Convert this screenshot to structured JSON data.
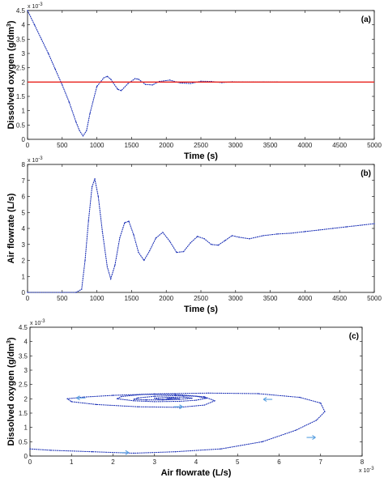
{
  "chart_data": [
    {
      "type": "line",
      "panel_label": "(a)",
      "xlabel": "Time (s)",
      "ylabel": "Dissolved oxygen (g/dm",
      "ylabel_sup": "3",
      "ylabel_close": ")",
      "y_multiplier": "x 10",
      "y_multiplier_exp": "-3",
      "xlim": [
        0,
        5000
      ],
      "ylim": [
        0,
        4.5
      ],
      "xticks": [
        0,
        500,
        1000,
        1500,
        2000,
        2500,
        3000,
        3500,
        4000,
        4500,
        5000
      ],
      "yticks": [
        0,
        0.5,
        1,
        1.5,
        2,
        2.5,
        3,
        3.5,
        4,
        4.5
      ],
      "grid": false,
      "colors": {
        "measured": "#1a2fb5",
        "setpoint": "#e8221c"
      },
      "series": [
        {
          "style": "dotted",
          "x": [
            0,
            100,
            200,
            300,
            400,
            500,
            600,
            700,
            750,
            800,
            850,
            900,
            1000,
            1100,
            1150,
            1200,
            1300,
            1350,
            1450,
            1550,
            1600,
            1700,
            1800,
            1900,
            2050,
            2200,
            2350,
            2500,
            2650,
            2800,
            2950,
            3100,
            3250,
            3400,
            3600
          ],
          "y": [
            4.5,
            4.0,
            3.5,
            3.0,
            2.45,
            1.9,
            1.3,
            0.6,
            0.3,
            0.12,
            0.3,
            0.9,
            1.85,
            2.15,
            2.2,
            2.1,
            1.75,
            1.7,
            1.95,
            2.12,
            2.1,
            1.92,
            1.9,
            2.02,
            2.07,
            1.97,
            1.95,
            2.03,
            2.02,
            1.98,
            2.01,
            2.0,
            2.0,
            2.0,
            2.0
          ]
        },
        {
          "style": "solid",
          "x": [
            0,
            5000
          ],
          "y": [
            2.0,
            2.0
          ]
        }
      ]
    },
    {
      "type": "line",
      "panel_label": "(b)",
      "xlabel": "Time (s)",
      "ylabel": "Air flowrate (L/s)",
      "y_multiplier": "x 10",
      "y_multiplier_exp": "-3",
      "xlim": [
        0,
        5000
      ],
      "ylim": [
        0,
        8
      ],
      "xticks": [
        0,
        500,
        1000,
        1500,
        2000,
        2500,
        3000,
        3500,
        4000,
        4500,
        5000
      ],
      "yticks": [
        0,
        1,
        2,
        3,
        4,
        5,
        6,
        7,
        8
      ],
      "grid": false,
      "colors": {
        "measured": "#1a2fb5"
      },
      "series": [
        {
          "style": "dotted",
          "x": [
            0,
            700,
            780,
            830,
            880,
            930,
            970,
            1020,
            1080,
            1150,
            1200,
            1260,
            1330,
            1400,
            1460,
            1530,
            1600,
            1680,
            1760,
            1850,
            1950,
            2050,
            2150,
            2250,
            2350,
            2450,
            2550,
            2650,
            2750,
            2850,
            2950,
            3050,
            3200,
            3400,
            3600,
            3800,
            4000,
            4200,
            4400,
            4600,
            4800,
            5000
          ],
          "y": [
            0,
            0,
            0.2,
            2.0,
            4.5,
            6.6,
            7.1,
            6.0,
            3.8,
            1.6,
            0.85,
            1.7,
            3.4,
            4.35,
            4.45,
            3.6,
            2.5,
            2.0,
            2.6,
            3.4,
            3.75,
            3.2,
            2.5,
            2.55,
            3.1,
            3.5,
            3.35,
            3.0,
            2.95,
            3.25,
            3.55,
            3.45,
            3.35,
            3.55,
            3.65,
            3.7,
            3.8,
            3.9,
            4.0,
            4.1,
            4.2,
            4.3
          ]
        }
      ]
    },
    {
      "type": "scatter",
      "panel_label": "(c)",
      "xlabel": "Air flowrate (L/s)",
      "ylabel": "Dissolved oxygen (g/dm",
      "ylabel_sup": "3",
      "ylabel_close": ")",
      "x_multiplier": "x 10",
      "x_multiplier_exp": "-3",
      "y_multiplier": "x 10",
      "y_multiplier_exp": "-3",
      "xlim": [
        0,
        8
      ],
      "ylim": [
        0,
        4.5
      ],
      "xticks": [
        0,
        1,
        2,
        3,
        4,
        5,
        6,
        7,
        8
      ],
      "yticks": [
        0,
        0.5,
        1,
        1.5,
        2,
        2.5,
        3,
        3.5,
        4,
        4.5
      ],
      "grid": false,
      "colors": {
        "measured": "#1a2fb5",
        "arrows": "#5aa0e0"
      },
      "series": [
        {
          "style": "dotted",
          "x": [
            0,
            0.5,
            1.5,
            2.5,
            3.5,
            4.6,
            5.6,
            6.4,
            6.9,
            7.1,
            7.0,
            6.5,
            5.5,
            4.3,
            3.0,
            2.0,
            1.3,
            0.9,
            1.0,
            1.6,
            2.6,
            3.6,
            4.2,
            4.45,
            4.2,
            3.5,
            2.7,
            2.2,
            2.1,
            2.5,
            3.0,
            3.6,
            4.0,
            4.25,
            4.0,
            3.5,
            3.0,
            2.6,
            2.5,
            2.8,
            3.2,
            3.6,
            3.9,
            3.7,
            3.3,
            3.0,
            3.1,
            3.4,
            3.6,
            3.4,
            3.3,
            3.4
          ],
          "y": [
            0.25,
            0.2,
            0.15,
            0.1,
            0.15,
            0.25,
            0.5,
            0.9,
            1.25,
            1.55,
            1.85,
            2.05,
            2.18,
            2.2,
            2.17,
            2.12,
            2.06,
            2.0,
            1.9,
            1.8,
            1.72,
            1.7,
            1.78,
            1.93,
            2.07,
            2.15,
            2.15,
            2.08,
            2.0,
            1.93,
            1.9,
            1.91,
            1.95,
            2.02,
            2.09,
            2.11,
            2.09,
            2.03,
            1.98,
            1.96,
            1.96,
            1.98,
            2.02,
            2.06,
            2.05,
            2.02,
            1.98,
            1.98,
            2.0,
            2.03,
            2.0,
            2.0
          ]
        }
      ],
      "arrows": [
        {
          "x": 1.2,
          "y": 2.03,
          "dir": "left"
        },
        {
          "x": 5.7,
          "y": 1.98,
          "dir": "left"
        },
        {
          "x": 2.3,
          "y": 0.12,
          "dir": "right"
        },
        {
          "x": 6.8,
          "y": 0.65,
          "dir": "right"
        },
        {
          "x": 3.6,
          "y": 1.72,
          "dir": "right"
        }
      ]
    }
  ]
}
